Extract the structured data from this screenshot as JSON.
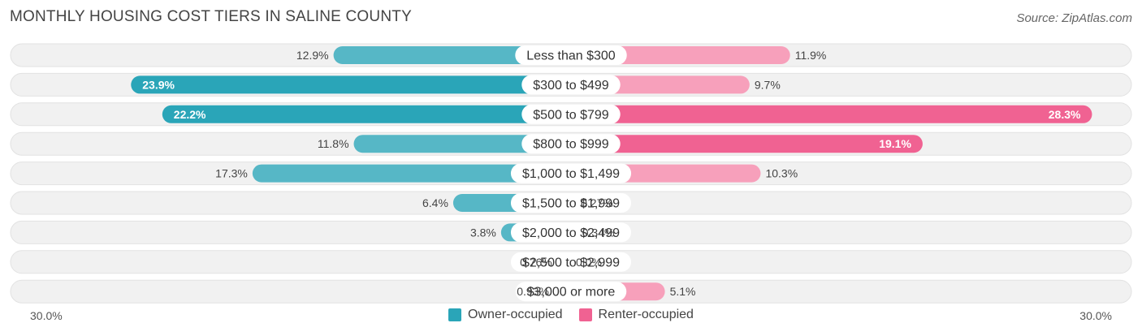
{
  "title": "MONTHLY HOUSING COST TIERS IN SALINE COUNTY",
  "source": "Source: ZipAtlas.com",
  "legend": {
    "owner_label": "Owner-occupied",
    "renter_label": "Renter-occupied"
  },
  "axis": {
    "left_label": "30.0%",
    "right_label": "30.0%"
  },
  "colors": {
    "owner": "#56b7c6",
    "owner_strong": "#2aa5b8",
    "renter": "#f7a0bb",
    "renter_strong": "#f06292",
    "row_bg": "#f1f1f1"
  },
  "chart_data": {
    "type": "bar",
    "orientation": "horizontal-diverging",
    "xlim": [
      -30,
      30
    ],
    "categories": [
      "Less than $300",
      "$300 to $499",
      "$500 to $799",
      "$800 to $999",
      "$1,000 to $1,499",
      "$1,500 to $1,999",
      "$2,000 to $2,499",
      "$2,500 to $2,999",
      "$3,000 or more"
    ],
    "series": [
      {
        "name": "Owner-occupied",
        "values": [
          12.9,
          23.9,
          22.2,
          11.8,
          17.3,
          6.4,
          3.8,
          0.76,
          0.93
        ],
        "labels": [
          "12.9%",
          "23.9%",
          "22.2%",
          "11.8%",
          "17.3%",
          "6.4%",
          "3.8%",
          "0.76%",
          "0.93%"
        ]
      },
      {
        "name": "Renter-occupied",
        "values": [
          11.9,
          9.7,
          28.3,
          19.1,
          10.3,
          0.27,
          0.34,
          0.0,
          5.1
        ],
        "labels": [
          "11.9%",
          "9.7%",
          "28.3%",
          "19.1%",
          "10.3%",
          "0.27%",
          "0.34%",
          "0.0%",
          "5.1%"
        ]
      }
    ]
  }
}
